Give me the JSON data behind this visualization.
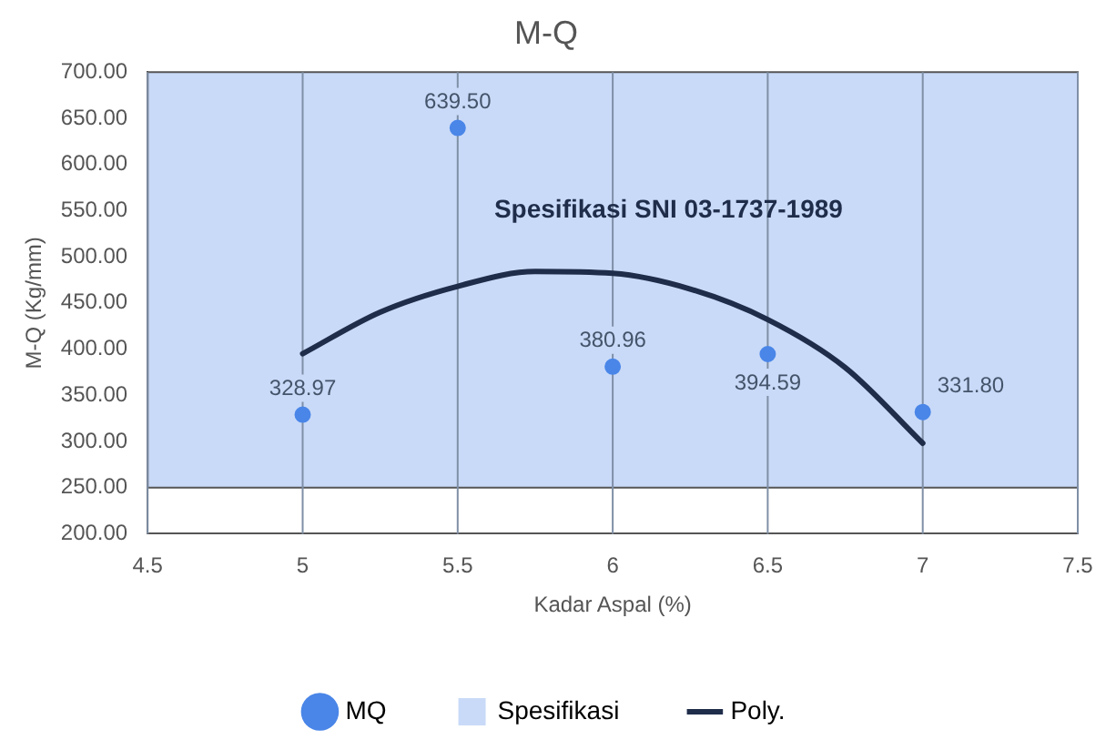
{
  "chart_data": {
    "type": "scatter",
    "title": "M-Q",
    "xlabel": "Kadar Aspal (%)",
    "ylabel": "M-Q (Kg/mm)",
    "x": [
      5,
      5.5,
      6,
      6.5,
      7
    ],
    "series": [
      {
        "name": "MQ",
        "type": "scatter",
        "color": "#4a86e8",
        "values": [
          328.97,
          639.5,
          380.96,
          394.59,
          331.8
        ],
        "value_labels": [
          "328.97",
          "639.50",
          "380.96",
          "394.59",
          "331.80"
        ]
      },
      {
        "name": "Poly.",
        "type": "line",
        "color": "#1f2d4a",
        "marker": "none",
        "x": [
          5,
          5.25,
          5.5,
          5.75,
          6,
          6.25,
          6.5,
          6.75,
          7
        ],
        "values": [
          395,
          440,
          468,
          484,
          482,
          465,
          432,
          380,
          298
        ]
      }
    ],
    "bands": [
      {
        "axis": "y",
        "from": 250,
        "to": 700,
        "label": "Spesifikasi",
        "color": "#c9daf8"
      }
    ],
    "annotations": [
      "Spesifikasi SNI 03-1737-1989"
    ],
    "xlim": [
      4.5,
      7.5
    ],
    "xticks": [
      4.5,
      5,
      5.5,
      6,
      6.5,
      7,
      7.5
    ],
    "ylim": [
      200,
      700
    ],
    "yticks": [
      {
        "value": 200,
        "label": "200.00"
      },
      {
        "value": 250,
        "label": "250.00"
      },
      {
        "value": 300,
        "label": "300.00"
      },
      {
        "value": 350,
        "label": "350.00"
      },
      {
        "value": 400,
        "label": "400.00"
      },
      {
        "value": 450,
        "label": "450.00"
      },
      {
        "value": 500,
        "label": "500.00"
      },
      {
        "value": 550,
        "label": "550.00"
      },
      {
        "value": 600,
        "label": "600.00"
      },
      {
        "value": 650,
        "label": "650.00"
      },
      {
        "value": 700,
        "label": "700.00"
      }
    ],
    "grid": "x",
    "legend": "bottom",
    "marker": "circle"
  }
}
